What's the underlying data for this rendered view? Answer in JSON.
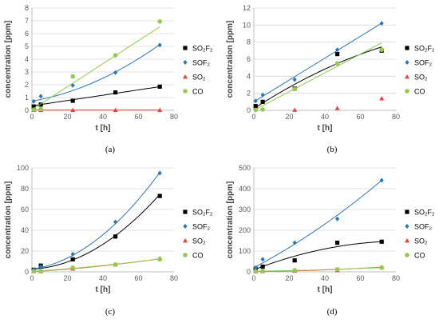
{
  "chart_data": [
    {
      "type": "scatter",
      "panel_label": "(a)",
      "xlabel": "t [h]",
      "ylabel": "concentration [ppm]",
      "xlim": [
        0,
        80
      ],
      "xticks": [
        0,
        20,
        40,
        60,
        80
      ],
      "ylim": [
        0,
        8
      ],
      "yticks": [
        0,
        1,
        2,
        3,
        4,
        5,
        6,
        7,
        8
      ],
      "legend_placement": "right",
      "series": [
        {
          "name": "SO₂F₂",
          "marker": "square",
          "color": "#000000",
          "x": [
            1,
            5,
            23,
            47,
            72
          ],
          "y": [
            0.3,
            0.45,
            0.75,
            1.4,
            1.85
          ],
          "trend": [
            0.35,
            0.0208,
            0
          ]
        },
        {
          "name": "SOF₂",
          "marker": "diamond",
          "color": "#2E75B6",
          "x": [
            1,
            5,
            23,
            47,
            72
          ],
          "y": [
            0.7,
            1.1,
            1.95,
            2.95,
            5.1
          ],
          "trend": [
            0.72,
            0.024,
            0.00052
          ]
        },
        {
          "name": "SO₂",
          "marker": "triangle",
          "color": "#E8423F",
          "x": [
            1,
            5,
            23,
            47,
            72
          ],
          "y": [
            0.02,
            0.02,
            0.02,
            0.02,
            0.02
          ],
          "trend": [
            0.02,
            0,
            0
          ]
        },
        {
          "name": "CO",
          "marker": "circle",
          "color": "#92C94F",
          "x": [
            1,
            5,
            23,
            47,
            72
          ],
          "y": [
            0.05,
            0.1,
            2.65,
            4.3,
            6.95
          ],
          "trend": [
            0.05,
            0.09,
            0
          ]
        }
      ]
    },
    {
      "type": "scatter",
      "panel_label": "(b)",
      "xlabel": "t [h]",
      "ylabel": "concentration [ppm]",
      "xlim": [
        0,
        80
      ],
      "xticks": [
        0,
        20,
        40,
        60,
        80
      ],
      "ylim": [
        0,
        12
      ],
      "yticks": [
        0,
        2,
        4,
        6,
        8,
        10,
        12
      ],
      "legend_placement": "right",
      "series": [
        {
          "name": "SO₂F₂",
          "marker": "square",
          "color": "#000000",
          "x": [
            1,
            5,
            23,
            47,
            72
          ],
          "y": [
            0.5,
            1.0,
            2.55,
            6.6,
            7.0
          ],
          "trend": [
            0.2,
            0.135,
            -0.00048
          ]
        },
        {
          "name": "SOF₂",
          "marker": "diamond",
          "color": "#2E75B6",
          "x": [
            1,
            5,
            23,
            47,
            72
          ],
          "y": [
            1.1,
            1.8,
            3.6,
            7.1,
            10.2
          ],
          "trend": [
            1.0,
            0.128,
            0
          ]
        },
        {
          "name": "SO₂",
          "marker": "triangle",
          "color": "#E8423F",
          "x": [
            23,
            47,
            72
          ],
          "y": [
            0.05,
            0.25,
            1.4
          ],
          "trend": null
        },
        {
          "name": "CO",
          "marker": "circle",
          "color": "#92C94F",
          "x": [
            1,
            5,
            23,
            47,
            72
          ],
          "y": [
            0.05,
            0.1,
            2.5,
            5.5,
            7.1
          ],
          "trend": [
            0.0,
            0.11,
            0.0
          ]
        }
      ]
    },
    {
      "type": "scatter",
      "panel_label": "(c)",
      "xlabel": "t [h]",
      "ylabel": "concentration [ppm]",
      "xlim": [
        0,
        80
      ],
      "xticks": [
        0,
        20,
        40,
        60,
        80
      ],
      "ylim": [
        0,
        100
      ],
      "yticks": [
        0,
        20,
        40,
        60,
        80,
        100
      ],
      "legend_placement": "right",
      "series": [
        {
          "name": "SO₂F₂",
          "marker": "square",
          "color": "#000000",
          "x": [
            1,
            5,
            23,
            47,
            72
          ],
          "y": [
            2,
            6,
            12,
            34,
            73
          ],
          "trend": [
            2.5,
            0.1,
            0.0125
          ]
        },
        {
          "name": "SOF₂",
          "marker": "diamond",
          "color": "#2E75B6",
          "x": [
            1,
            5,
            23,
            47,
            72
          ],
          "y": [
            2,
            5,
            17,
            48,
            95
          ],
          "trend": [
            2.5,
            0.25,
            0.0145
          ]
        },
        {
          "name": "SO₂",
          "marker": "triangle",
          "color": "#E8423F",
          "x": [
            1,
            5,
            23,
            47,
            72
          ],
          "y": [
            0.5,
            0.5,
            3,
            7,
            13
          ],
          "trend": [
            0.2,
            0.1,
            0.001
          ]
        },
        {
          "name": "CO",
          "marker": "circle",
          "color": "#92C94F",
          "x": [
            1,
            5,
            23,
            47,
            72
          ],
          "y": [
            0.5,
            0.5,
            4,
            7,
            12
          ],
          "trend": [
            0.4,
            0.11,
            0.0008
          ]
        }
      ]
    },
    {
      "type": "scatter",
      "panel_label": "(d)",
      "xlabel": "t [h]",
      "ylabel": "concentration [ppm]",
      "xlim": [
        0,
        80
      ],
      "xticks": [
        0,
        20,
        40,
        60,
        80
      ],
      "ylim": [
        0,
        500
      ],
      "yticks": [
        0,
        100,
        200,
        300,
        400,
        500
      ],
      "legend_placement": "right",
      "series": [
        {
          "name": "SO₂F₂",
          "marker": "square",
          "color": "#000000",
          "x": [
            1,
            5,
            23,
            47,
            72
          ],
          "y": [
            15,
            25,
            55,
            140,
            145
          ],
          "trend": [
            10,
            3.3,
            -0.0198
          ]
        },
        {
          "name": "SOF₂",
          "marker": "diamond",
          "color": "#2E75B6",
          "x": [
            1,
            5,
            23,
            47,
            72
          ],
          "y": [
            20,
            60,
            140,
            255,
            440
          ],
          "trend": [
            20,
            4.5,
            0.0185
          ]
        },
        {
          "name": "SO₂",
          "marker": "triangle",
          "color": "#E8423F",
          "x": [
            1,
            5,
            23,
            47,
            72
          ],
          "y": [
            2,
            3,
            5,
            8,
            22
          ],
          "trend": [
            2,
            0.05,
            0.0033
          ]
        },
        {
          "name": "CO",
          "marker": "circle",
          "color": "#92C94F",
          "x": [
            1,
            5,
            23,
            47,
            72
          ],
          "y": [
            3,
            4,
            8,
            12,
            20
          ],
          "trend": [
            3,
            0.12,
            0.0017
          ]
        }
      ]
    }
  ]
}
